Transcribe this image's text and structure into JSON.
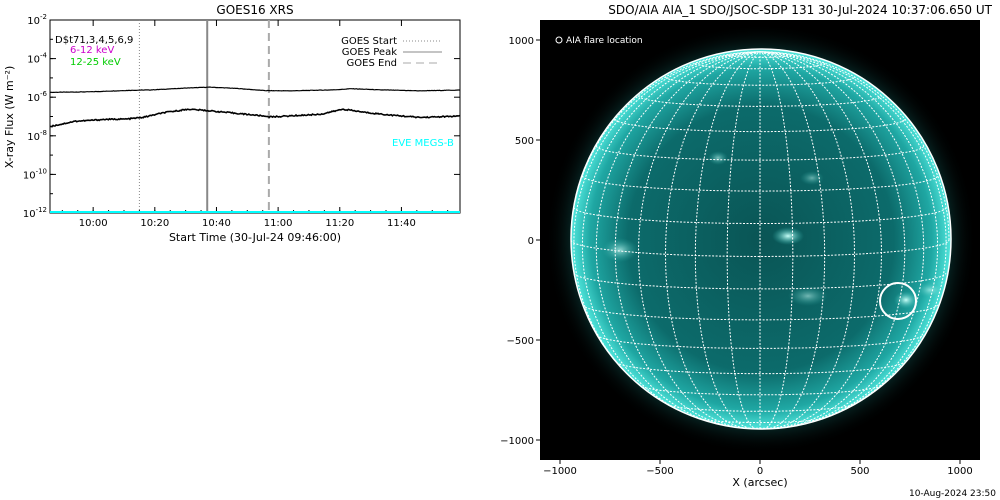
{
  "chart_data": [
    {
      "type": "line",
      "title": "GOES16 XRS",
      "xlabel": "Start Time (30-Jul-24 09:46:00)",
      "ylabel": "X-ray Flux (W m⁻²)",
      "yscale": "log",
      "ylim_exp": [
        -12,
        -2
      ],
      "yticks_exp": [
        -12,
        -10,
        -8,
        -6,
        -4,
        -2
      ],
      "xlim_minutes": [
        0,
        133
      ],
      "xticks": [
        {
          "label": "10:00",
          "minutes": 14
        },
        {
          "label": "10:20",
          "minutes": 34
        },
        {
          "label": "10:40",
          "minutes": 54
        },
        {
          "label": "11:00",
          "minutes": 74
        },
        {
          "label": "11:20",
          "minutes": 94
        },
        {
          "label": "11:40",
          "minutes": 114
        }
      ],
      "info_text": "D$t71,3,4,5,6,9",
      "series": [
        {
          "name": "6-12 keV",
          "color": "#cc00cc",
          "x": [
            0,
            13,
            25,
            33,
            45,
            52,
            61,
            70,
            78,
            92,
            98,
            107,
            120,
            133
          ],
          "log10_y": [
            -5.75,
            -5.72,
            -5.65,
            -5.62,
            -5.52,
            -5.48,
            -5.55,
            -5.66,
            -5.67,
            -5.62,
            -5.56,
            -5.62,
            -5.67,
            -5.63
          ]
        },
        {
          "name": "12-25 keV",
          "color": "#00cc00",
          "x": [
            0,
            8,
            18,
            25,
            30,
            37,
            45,
            50,
            58,
            66,
            72,
            80,
            88,
            95,
            102,
            110,
            120,
            133
          ],
          "log10_y": [
            -7.52,
            -7.25,
            -7.15,
            -7.13,
            -7.05,
            -6.8,
            -6.62,
            -6.68,
            -6.8,
            -6.92,
            -7.02,
            -6.95,
            -6.88,
            -6.62,
            -6.78,
            -6.92,
            -7.05,
            -6.98
          ]
        }
      ],
      "markers": {
        "start": {
          "label": "GOES Start",
          "minutes": 29
        },
        "peak": {
          "label": "GOES Peak",
          "minutes": 51
        },
        "end": {
          "label": "GOES End",
          "minutes": 71
        }
      },
      "eve_label": "EVE MEGS-B",
      "eve_color": "#00ffff"
    },
    {
      "type": "image",
      "title": "SDO/AIA AIA_1 SDO/JSOC-SDP 131 30-Jul-2024 10:37:06.650 UT",
      "xlabel": "X (arcsec)",
      "ylabel": "",
      "xlim": [
        -1100,
        1100
      ],
      "ylim": [
        -1100,
        1100
      ],
      "xticks": [
        -1000,
        -500,
        0,
        500,
        1000
      ],
      "yticks": [
        -1000,
        -500,
        0,
        500,
        1000
      ],
      "solar_radius_arcsec": 945,
      "legend_text": "AIA flare location",
      "flare_location_arcsec": [
        690,
        -305
      ],
      "flare_circle_radius_arcsec": 90,
      "colors": {
        "disk": "#0c6e6e",
        "limb": "#35d9d0",
        "grid": "#ffffff"
      }
    }
  ],
  "footer": {
    "date": "10-Aug-2024 23:50"
  }
}
